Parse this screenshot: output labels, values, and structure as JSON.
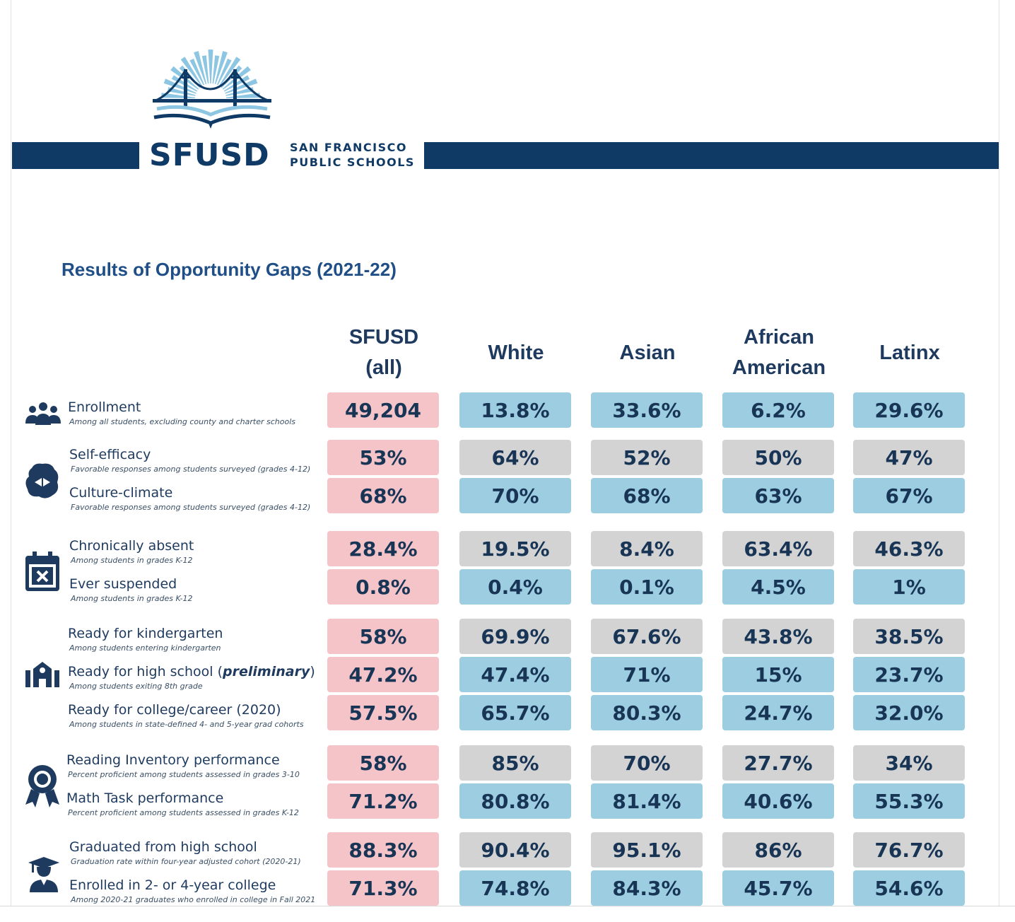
{
  "header": {
    "logo_wordmark": "SFUSD",
    "logo_subline_1": "SAN FRANCISCO",
    "logo_subline_2": "PUBLIC SCHOOLS",
    "brand_color": "#0f3a66",
    "accent_color": "#8cc6e2"
  },
  "title": "Results of Opportunity Gaps (2021-22)",
  "columns": [
    {
      "line1": "SFUSD",
      "line2": "(all)"
    },
    {
      "line1": "White",
      "line2": ""
    },
    {
      "line1": "Asian",
      "line2": ""
    },
    {
      "line1": "African",
      "line2": "American"
    },
    {
      "line1": "Latinx",
      "line2": ""
    }
  ],
  "cell_colors": {
    "pink": "#f4c4c9",
    "blue": "#9ccde0",
    "gray": "#d3d3d3"
  },
  "groups": [
    {
      "icon": "people-group-icon",
      "metrics": [
        0
      ]
    },
    {
      "icon": "brain-icon",
      "metrics": [
        1,
        2
      ]
    },
    {
      "icon": "calendar-x-icon",
      "metrics": [
        3,
        4
      ]
    },
    {
      "icon": "school-building-icon",
      "metrics": [
        5,
        6,
        7
      ]
    },
    {
      "icon": "award-ribbon-icon",
      "metrics": [
        8,
        9
      ]
    },
    {
      "icon": "graduate-icon",
      "metrics": [
        10,
        11
      ]
    }
  ],
  "metrics": [
    {
      "label": "Enrollment",
      "sub": "Among all students, excluding county and charter schools",
      "values": [
        "49,204",
        "13.8%",
        "33.6%",
        "6.2%",
        "29.6%"
      ],
      "colors": [
        "pink",
        "blue",
        "blue",
        "blue",
        "blue"
      ]
    },
    {
      "label": "Self-efficacy",
      "sub": "Favorable responses among students surveyed (grades 4-12)",
      "values": [
        "53%",
        "64%",
        "52%",
        "50%",
        "47%"
      ],
      "colors": [
        "pink",
        "gray",
        "gray",
        "gray",
        "gray"
      ]
    },
    {
      "label": "Culture-climate",
      "sub": "Favorable responses among students surveyed (grades 4-12)",
      "values": [
        "68%",
        "70%",
        "68%",
        "63%",
        "67%"
      ],
      "colors": [
        "pink",
        "blue",
        "blue",
        "blue",
        "blue"
      ]
    },
    {
      "label": "Chronically absent",
      "sub": "Among students in grades K-12",
      "values": [
        "28.4%",
        "19.5%",
        "8.4%",
        "63.4%",
        "46.3%"
      ],
      "colors": [
        "pink",
        "gray",
        "gray",
        "gray",
        "gray"
      ]
    },
    {
      "label": "Ever suspended",
      "sub": "Among students in grades K-12",
      "values": [
        "0.8%",
        "0.4%",
        "0.1%",
        "4.5%",
        "1%"
      ],
      "colors": [
        "pink",
        "blue",
        "blue",
        "blue",
        "blue"
      ]
    },
    {
      "label": "Ready for kindergarten",
      "sub": "Among students entering kindergarten",
      "values": [
        "58%",
        "69.9%",
        "67.6%",
        "43.8%",
        "38.5%"
      ],
      "colors": [
        "pink",
        "gray",
        "gray",
        "gray",
        "gray"
      ]
    },
    {
      "label": "Ready for high school (",
      "label_em": "preliminary",
      "label_end": ")",
      "sub": "Among students exiting 8th grade",
      "values": [
        "47.2%",
        "47.4%",
        "71%",
        "15%",
        "23.7%"
      ],
      "colors": [
        "pink",
        "blue",
        "blue",
        "blue",
        "blue"
      ]
    },
    {
      "label": "Ready for college/career (2020)",
      "sub": "Among students in state-defined 4- and 5-year grad cohorts",
      "values": [
        "57.5%",
        "65.7%",
        "80.3%",
        "24.7%",
        "32.0%"
      ],
      "colors": [
        "pink",
        "blue",
        "blue",
        "blue",
        "blue"
      ]
    },
    {
      "label": "Reading Inventory performance",
      "sub": "Percent proficient among students assessed in grades 3-10",
      "values": [
        "58%",
        "85%",
        "70%",
        "27.7%",
        "34%"
      ],
      "colors": [
        "pink",
        "gray",
        "gray",
        "gray",
        "gray"
      ]
    },
    {
      "label": "Math Task performance",
      "sub": "Percent proficient among students assessed in grades K-12",
      "values": [
        "71.2%",
        "80.8%",
        "81.4%",
        "40.6%",
        "55.3%"
      ],
      "colors": [
        "pink",
        "blue",
        "blue",
        "blue",
        "blue"
      ]
    },
    {
      "label": "Graduated from high school",
      "sub": "Graduation rate within four-year adjusted cohort (2020-21)",
      "values": [
        "88.3%",
        "90.4%",
        "95.1%",
        "86%",
        "76.7%"
      ],
      "colors": [
        "pink",
        "gray",
        "gray",
        "gray",
        "gray"
      ]
    },
    {
      "label": "Enrolled in 2- or 4-year college",
      "sub": "Among 2020-21 graduates who enrolled in college in Fall 2021",
      "values": [
        "71.3%",
        "74.8%",
        "84.3%",
        "45.7%",
        "54.6%"
      ],
      "colors": [
        "pink",
        "blue",
        "blue",
        "blue",
        "blue"
      ]
    }
  ]
}
